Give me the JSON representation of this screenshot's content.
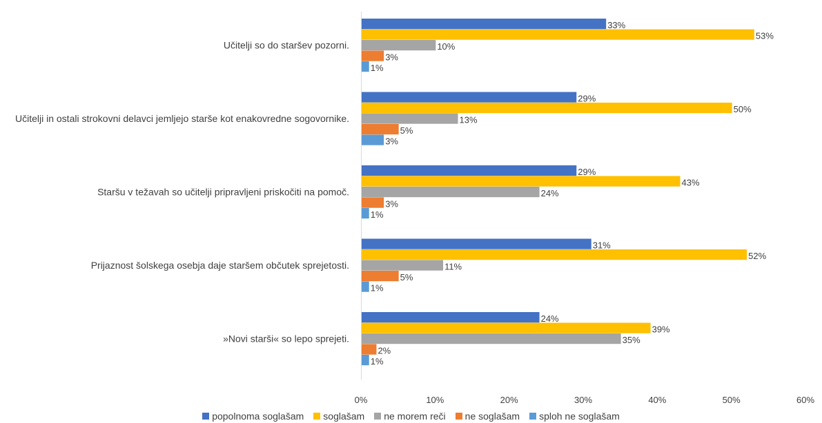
{
  "chart_data": {
    "type": "bar",
    "orientation": "horizontal",
    "categories": [
      "Učitelji so do staršev pozorni.",
      "Učitelji in ostali strokovni delavci jemljejo starše kot enakovredne sogovornike.",
      "Staršu v težavah so učitelji pripravljeni priskočiti na pomoč.",
      "Prijaznost šolskega osebja daje staršem občutek sprejetosti.",
      "»Novi starši« so lepo sprejeti."
    ],
    "series": [
      {
        "name": "popolnoma soglašam",
        "color": "#4472C4",
        "values": [
          33,
          29,
          29,
          31,
          24
        ]
      },
      {
        "name": "soglašam",
        "color": "#FFC000",
        "values": [
          53,
          50,
          43,
          52,
          39
        ]
      },
      {
        "name": "ne morem reči",
        "color": "#A5A5A5",
        "values": [
          10,
          13,
          24,
          11,
          35
        ]
      },
      {
        "name": "ne soglašam",
        "color": "#ED7D31",
        "values": [
          3,
          5,
          3,
          5,
          2
        ]
      },
      {
        "name": "sploh ne soglašam",
        "color": "#5B9BD5",
        "values": [
          1,
          3,
          1,
          1,
          1
        ]
      }
    ],
    "xlim": [
      0,
      60
    ],
    "x_ticks": [
      "0%",
      "10%",
      "20%",
      "30%",
      "40%",
      "50%",
      "60%"
    ],
    "value_suffix": "%",
    "grid": false,
    "legend": "bottom"
  }
}
